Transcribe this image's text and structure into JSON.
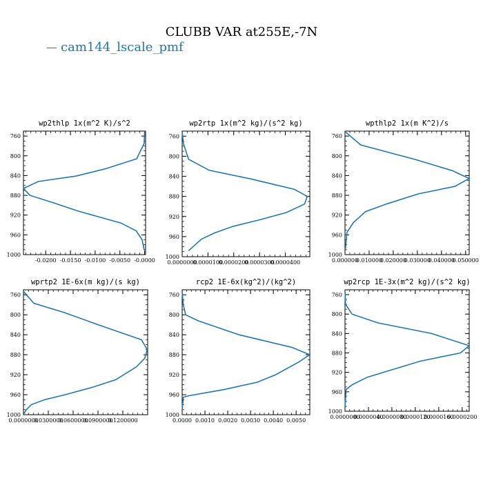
{
  "figure": {
    "title": "CLUBB VAR at255E,-7N",
    "legend": [
      {
        "label": "cam144_lscale_pmf",
        "color": "#1f77b4"
      }
    ]
  },
  "chart_data": [
    {
      "type": "line",
      "title": "wp2thlp   1x(m^2 K)/s^2",
      "xlim": [
        -0.0245,
        0.0002
      ],
      "ylim": [
        1000,
        750
      ],
      "x_ticks": [
        -0.02,
        -0.015,
        -0.01,
        -0.005,
        0.0
      ],
      "x_tick_labels": [
        "-0.0200",
        "-0.0150",
        "-0.0100",
        "-0.0050",
        "-0.0000"
      ],
      "y_ticks": [
        760,
        800,
        840,
        880,
        920,
        960,
        1000
      ],
      "series": [
        {
          "x": [
            0.0,
            -0.0001,
            -0.0016,
            -0.0078,
            -0.0139,
            -0.0215,
            -0.0245,
            -0.0232,
            -0.0185,
            -0.0134,
            -0.0091,
            -0.0048,
            -0.0017,
            -0.0005,
            -0.0001
          ],
          "y": [
            750,
            775,
            806,
            826,
            841,
            852,
            866,
            880,
            895,
            912,
            924,
            936,
            952,
            970,
            990
          ]
        }
      ]
    },
    {
      "type": "line",
      "title": "wp2rtp   1x(m^2 kg)/(s^2 kg)",
      "xlim": [
        0,
        4.95e-05
      ],
      "ylim": [
        1000,
        750
      ],
      "x_ticks": [
        0,
        1e-05,
        2e-05,
        3e-05,
        4e-05
      ],
      "x_tick_labels": [
        "0.0000000",
        "0.0000100",
        "0.0000200",
        "0.0000300",
        "0.0000400"
      ],
      "y_ticks": [
        760,
        800,
        840,
        880,
        920,
        960,
        1000
      ],
      "series": [
        {
          "x": [
            0.0,
            5e-07,
            2.5e-06,
            1.05e-05,
            2.65e-05,
            4.35e-05,
            4.85e-05,
            4.75e-05,
            4.05e-05,
            3.05e-05,
            1.95e-05,
            1.25e-05,
            7.5e-06,
            2.5e-06
          ],
          "y": [
            752,
            775,
            806,
            828,
            845,
            866,
            880,
            895,
            912,
            926,
            940,
            953,
            965,
            988
          ]
        }
      ]
    },
    {
      "type": "line",
      "title": "wpthlp2   1x(m K^2)/s",
      "xlim": [
        0,
        0.0515
      ],
      "ylim": [
        1000,
        750
      ],
      "x_ticks": [
        0,
        0.01,
        0.02,
        0.03,
        0.04,
        0.05
      ],
      "x_tick_labels": [
        "0.000000",
        "0.010000",
        "0.020000",
        "0.030000",
        "0.040000",
        "0.050000"
      ],
      "y_ticks": [
        760,
        800,
        840,
        880,
        920,
        960,
        1000
      ],
      "series": [
        {
          "x": [
            0.0003,
            0.0065,
            0.0295,
            0.0445,
            0.0515,
            0.0455,
            0.0305,
            0.0175,
            0.0085,
            0.0035,
            0.0008,
            0.0002
          ],
          "y": [
            752,
            778,
            808,
            830,
            846,
            862,
            877,
            897,
            913,
            935,
            955,
            988
          ]
        }
      ]
    },
    {
      "type": "line",
      "title": "wprtp2   1E-6x(m kg)/(s kg)",
      "xlim": [
        0,
        0.15
      ],
      "ylim": [
        1000,
        750
      ],
      "x_ticks": [
        0,
        0.03,
        0.06,
        0.09,
        0.12
      ],
      "x_tick_labels": [
        "0.0000000",
        "0.0300000",
        "0.0600000",
        "0.0900000",
        "0.1200000"
      ],
      "y_ticks": [
        760,
        800,
        840,
        880,
        920,
        960,
        1000
      ],
      "series": [
        {
          "x": [
            0.0,
            0.0125,
            0.0485,
            0.0905,
            0.1425,
            0.1495,
            0.1465,
            0.1365,
            0.1115,
            0.0835,
            0.0505,
            0.0255,
            0.0095,
            0.0035,
            0.0005
          ],
          "y": [
            753,
            777,
            795,
            820,
            850,
            870,
            887,
            904,
            930,
            945,
            960,
            970,
            980,
            990,
            998
          ]
        }
      ]
    },
    {
      "type": "line",
      "title": "rcp2   1E-6x(kg^2)/(kg^2)",
      "xlim": [
        0,
        0.0056
      ],
      "ylim": [
        1000,
        750
      ],
      "x_ticks": [
        0,
        0.001,
        0.002,
        0.003,
        0.004,
        0.005
      ],
      "x_tick_labels": [
        "0.0000",
        "0.0010",
        "0.0020",
        "0.0030",
        "0.0040",
        "0.0050"
      ],
      "y_ticks": [
        760,
        800,
        840,
        880,
        920,
        960,
        1000
      ],
      "series": [
        {
          "x": [
            0.0,
            5e-05,
            0.00015,
            0.0007,
            0.0025,
            0.0048,
            0.0056,
            0.0051,
            0.0041,
            0.0033,
            0.0018,
            0.0008,
            0.0003,
            5e-05,
            0.0
          ],
          "y": [
            755,
            780,
            800,
            812,
            840,
            865,
            880,
            895,
            920,
            935,
            950,
            958,
            962,
            965,
            990
          ]
        }
      ]
    },
    {
      "type": "line",
      "title": "wp2rcp   1E-3x(m^2 kg)/(s^2 kg)",
      "xlim": [
        0,
        2.12e-05
      ],
      "ylim": [
        1000,
        750
      ],
      "x_ticks": [
        0,
        4e-06,
        8e-06,
        1.2e-05,
        1.6e-05,
        2e-05
      ],
      "x_tick_labels": [
        "0.0000000",
        "0.0000040",
        "0.0000080",
        "0.0000120",
        "0.0000160",
        "0.0000200"
      ],
      "y_ticks": [
        760,
        800,
        840,
        880,
        920,
        960,
        1000
      ],
      "series": [
        {
          "x": [
            0.0,
            1e-07,
            1.2e-06,
            5.6e-06,
            1.48e-05,
            2.12e-05,
            1.97e-05,
            1.28e-05,
            3.8e-06,
            1.3e-06,
            2e-07,
            0.0
          ],
          "y": [
            752,
            780,
            800,
            818,
            840,
            865,
            880,
            897,
            930,
            945,
            955,
            990
          ]
        }
      ]
    }
  ]
}
